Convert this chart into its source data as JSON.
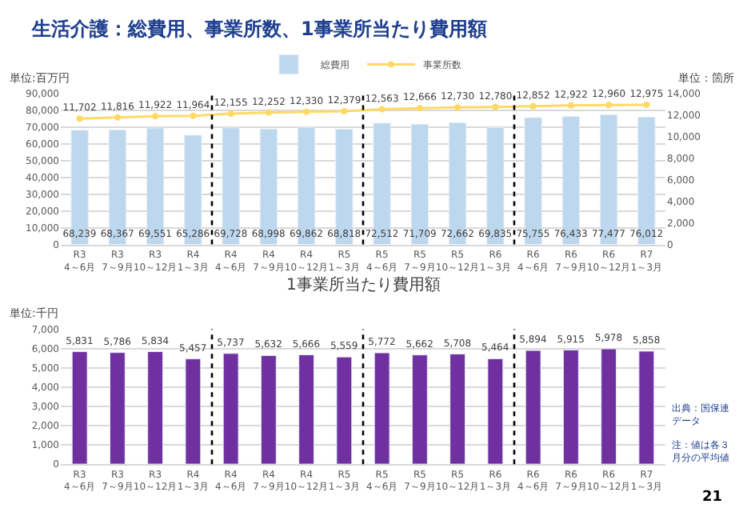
{
  "chart_data": [
    {
      "type": "bar",
      "title": "生活介護：総費用、事業所数、1事業所当たり費用額",
      "ylabel": "単位:百万円",
      "y2label": "単位：箇所",
      "categories": [
        "R3\n4～6月",
        "R3\n7～9月",
        "R3\n10～12月",
        "R4\n1～3月",
        "R4\n4～6月",
        "R4\n7～9月",
        "R4\n10～12月",
        "R5\n1～3月",
        "R5\n4～6月",
        "R5\n7～9月",
        "R5\n10～12月",
        "R6\n1～3月",
        "R6\n4～6月",
        "R6\n7～9月",
        "R6\n10～12月",
        "R7\n1～3月"
      ],
      "series": [
        {
          "name": "総費用",
          "type": "bar",
          "color": "#bdd7ee",
          "values": [
            68239,
            68367,
            69551,
            65286,
            69728,
            68998,
            69862,
            68818,
            72512,
            71709,
            72662,
            69835,
            75755,
            76433,
            77477,
            76012
          ],
          "value_labels": [
            "68,239",
            "68,367",
            "69,551",
            "65,286",
            "69,728",
            "68,998",
            "69,862",
            "68,818",
            "72,512",
            "71,709",
            "72,662",
            "69,835",
            "75,755",
            "76,433",
            "77,477",
            "76,012"
          ]
        },
        {
          "name": "事業所数",
          "type": "line",
          "axis": "y2",
          "color": "#ffd966",
          "marker": "circle",
          "values": [
            11702,
            11816,
            11922,
            11964,
            12155,
            12252,
            12330,
            12379,
            12563,
            12666,
            12730,
            12780,
            12852,
            12922,
            12960,
            12975
          ],
          "value_labels": [
            "11,702",
            "11,816",
            "11,922",
            "11,964",
            "12,155",
            "12,252",
            "12,330",
            "12,379",
            "12,563",
            "12,666",
            "12,730",
            "12,780",
            "12,852",
            "12,922",
            "12,960",
            "12,975"
          ]
        }
      ],
      "ylim": [
        0,
        90000
      ],
      "yticks": [
        {
          "value": 0,
          "label": "0"
        },
        {
          "value": 10000,
          "label": "10,000"
        },
        {
          "value": 20000,
          "label": "20,000"
        },
        {
          "value": 30000,
          "label": "30,000"
        },
        {
          "value": 40000,
          "label": "40,000"
        },
        {
          "value": 50000,
          "label": "50,000"
        },
        {
          "value": 60000,
          "label": "60,000"
        },
        {
          "value": 70000,
          "label": "70,000"
        },
        {
          "value": 80000,
          "label": "80,000"
        },
        {
          "value": 90000,
          "label": "90,000"
        }
      ],
      "y2lim": [
        0,
        14000
      ],
      "y2ticks": [
        {
          "value": 0,
          "label": "0"
        },
        {
          "value": 2000,
          "label": "2,000"
        },
        {
          "value": 4000,
          "label": "4,000"
        },
        {
          "value": 6000,
          "label": "6,000"
        },
        {
          "value": 8000,
          "label": "8,000"
        },
        {
          "value": 10000,
          "label": "10,000"
        },
        {
          "value": 12000,
          "label": "12,000"
        },
        {
          "value": 14000,
          "label": "14,000"
        }
      ],
      "grid": "y",
      "legend": "top"
    },
    {
      "type": "bar",
      "title": "1事業所当たり費用額",
      "ylabel": "単位:千円",
      "categories": [
        "R3\n4～6月",
        "R3\n7～9月",
        "R3\n10～12月",
        "R4\n1～3月",
        "R4\n4～6月",
        "R4\n7～9月",
        "R4\n10～12月",
        "R5\n1～3月",
        "R5\n4～6月",
        "R5\n7～9月",
        "R5\n10～12月",
        "R6\n1～3月",
        "R6\n4～6月",
        "R6\n7～9月",
        "R6\n10～12月",
        "R7\n1～3月"
      ],
      "series": [
        {
          "color": "#7030a0",
          "values": [
            5831,
            5786,
            5834,
            5457,
            5737,
            5632,
            5666,
            5559,
            5772,
            5662,
            5708,
            5464,
            5894,
            5915,
            5978,
            5858
          ],
          "value_labels": [
            "5,831",
            "5,786",
            "5,834",
            "5,457",
            "5,737",
            "5,632",
            "5,666",
            "5,559",
            "5,772",
            "5,662",
            "5,708",
            "5,464",
            "5,894",
            "5,915",
            "5,978",
            "5,858"
          ]
        }
      ],
      "ylim": [
        0,
        7000
      ],
      "yticks": [
        {
          "value": 0,
          "label": "0"
        },
        {
          "value": 1000,
          "label": "1,000"
        },
        {
          "value": 2000,
          "label": "2,000"
        },
        {
          "value": 3000,
          "label": "3,000"
        },
        {
          "value": 4000,
          "label": "4,000"
        },
        {
          "value": 5000,
          "label": "5,000"
        },
        {
          "value": 6000,
          "label": "6,000"
        },
        {
          "value": 7000,
          "label": "7,000"
        }
      ],
      "annotations": [
        "出典：国保連データ",
        "注：値は各３月分の平均値",
        "21"
      ],
      "grid": "y",
      "legend": false
    }
  ]
}
